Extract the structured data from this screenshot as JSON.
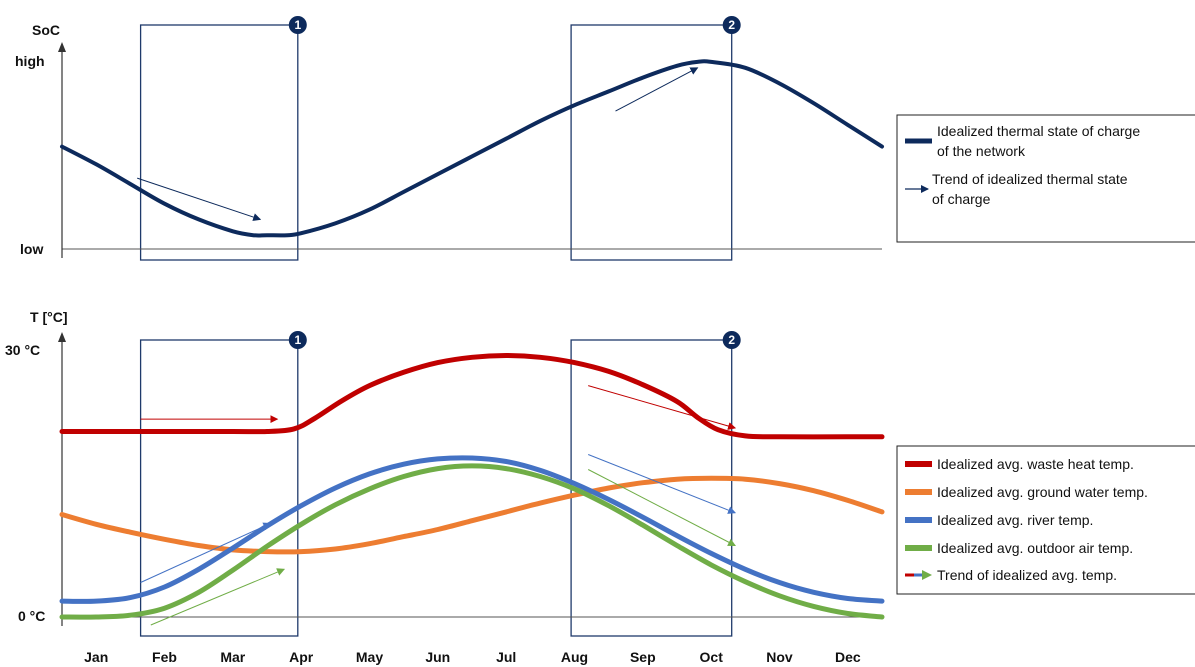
{
  "chart_data": [
    {
      "type": "line",
      "ylabel": "SoC",
      "y_tick_labels": [
        "high",
        "low"
      ],
      "categories": [
        "Jan",
        "Feb",
        "Mar",
        "Apr",
        "May",
        "Jun",
        "Jul",
        "Aug",
        "Sep",
        "Oct",
        "Nov",
        "Dec"
      ],
      "xlim": [
        0.5,
        12.5
      ],
      "ylim": [
        0,
        1
      ],
      "series": [
        {
          "color": "#0d2a5c",
          "x": [
            0.5,
            1,
            1.5,
            2,
            2.5,
            3,
            3.3,
            3.5,
            3.8,
            4,
            4.5,
            5,
            5.5,
            6,
            6.5,
            7,
            7.5,
            8,
            8.5,
            9,
            9.5,
            9.8,
            10,
            10.5,
            11,
            11.5,
            12,
            12.5
          ],
          "y": [
            0.52,
            0.43,
            0.33,
            0.23,
            0.15,
            0.09,
            0.07,
            0.07,
            0.07,
            0.08,
            0.13,
            0.2,
            0.29,
            0.38,
            0.47,
            0.56,
            0.65,
            0.73,
            0.8,
            0.87,
            0.93,
            0.95,
            0.95,
            0.92,
            0.84,
            0.74,
            0.63,
            0.52
          ]
        }
      ],
      "trend_arrows": [
        {
          "from": [
            1.6,
            0.36
          ],
          "to": [
            3.4,
            0.15
          ]
        },
        {
          "from": [
            8.6,
            0.7
          ],
          "to": [
            9.8,
            0.92
          ]
        }
      ],
      "highlight_boxes": [
        {
          "label": "1",
          "x_range": [
            1.65,
            3.95
          ]
        },
        {
          "label": "2",
          "x_range": [
            7.95,
            10.3
          ]
        }
      ],
      "legend": {
        "position": "right",
        "entries": [
          {
            "label": "Idealized thermal state of charge of the network",
            "lines": [
              "Idealized thermal state of charge",
              "of the network"
            ],
            "color": "#0d2a5c",
            "marker": "line"
          },
          {
            "label": "Trend of idealized thermal state of charge",
            "lines": [
              "Trend of idealized thermal state",
              "of charge"
            ],
            "color": "#0d2a5c",
            "marker": "arrow"
          }
        ]
      }
    },
    {
      "type": "line",
      "ylabel": "T [°C]",
      "y_tick_labels": [
        "30 °C",
        "0 °C"
      ],
      "categories": [
        "Jan",
        "Feb",
        "Mar",
        "Apr",
        "May",
        "Jun",
        "Jul",
        "Aug",
        "Sep",
        "Oct",
        "Nov",
        "Dec"
      ],
      "xlim": [
        0.5,
        12.5
      ],
      "ylim": [
        0,
        30
      ],
      "series": [
        {
          "name": "Idealized avg. waste heat temp.",
          "color": "#c00000",
          "x": [
            0.5,
            1,
            2,
            3,
            3.5,
            3.9,
            4.2,
            4.6,
            5,
            5.5,
            6,
            6.5,
            7,
            7.5,
            8,
            8.5,
            9,
            9.5,
            9.8,
            10.1,
            10.5,
            11,
            12,
            12.5
          ],
          "y": [
            21,
            21,
            21,
            21,
            21,
            21.3,
            22.5,
            24.5,
            26.2,
            27.7,
            28.8,
            29.4,
            29.6,
            29.4,
            28.8,
            27.8,
            26.3,
            24.4,
            22.6,
            21.2,
            20.5,
            20.4,
            20.4,
            20.4
          ]
        },
        {
          "name": "Idealized avg. ground water temp.",
          "color": "#ed7d31",
          "x": [
            0.5,
            1,
            1.5,
            2,
            2.5,
            3,
            3.5,
            4,
            4.5,
            5,
            5.5,
            6,
            6.5,
            7,
            7.5,
            8,
            8.5,
            9,
            9.5,
            10,
            10.5,
            11,
            11.5,
            12,
            12.5
          ],
          "y": [
            11.6,
            10.5,
            9.6,
            8.8,
            8.1,
            7.6,
            7.4,
            7.4,
            7.7,
            8.3,
            9.1,
            9.9,
            10.9,
            11.9,
            12.9,
            13.8,
            14.6,
            15.2,
            15.6,
            15.7,
            15.6,
            15.1,
            14.3,
            13.2,
            11.9
          ]
        },
        {
          "name": "Idealized avg. river temp.",
          "color": "#4472c4",
          "x": [
            0.5,
            1,
            1.5,
            2,
            2.5,
            3,
            3.5,
            4,
            4.5,
            5,
            5.5,
            6,
            6.5,
            7,
            7.5,
            8,
            8.5,
            9,
            9.5,
            10,
            10.5,
            11,
            11.5,
            12,
            12.5
          ],
          "y": [
            1.8,
            1.8,
            2.2,
            3.4,
            5.4,
            7.8,
            10.3,
            12.6,
            14.6,
            16.2,
            17.3,
            17.9,
            18.0,
            17.6,
            16.6,
            15.1,
            13.3,
            11.3,
            9.2,
            7.2,
            5.4,
            3.9,
            2.8,
            2.1,
            1.8
          ]
        },
        {
          "name": "Idealized avg. outdoor air temp.",
          "color": "#70ad47",
          "x": [
            0.5,
            1,
            1.5,
            2,
            2.5,
            3,
            3.5,
            4,
            4.5,
            5,
            5.5,
            6,
            6.5,
            7,
            7.5,
            8,
            8.5,
            9,
            9.5,
            10,
            10.5,
            11,
            11.5,
            12,
            12.5
          ],
          "y": [
            0,
            0,
            0.2,
            1.0,
            2.8,
            5.3,
            8.0,
            10.5,
            12.7,
            14.5,
            15.9,
            16.8,
            17.1,
            16.8,
            15.9,
            14.5,
            12.6,
            10.4,
            8.1,
            5.9,
            4.0,
            2.4,
            1.2,
            0.4,
            0
          ]
        }
      ],
      "trend_arrows": [
        {
          "color": "#c00000",
          "from": [
            1.65,
            22.4
          ],
          "to": [
            3.65,
            22.4
          ]
        },
        {
          "color": "#c00000",
          "from": [
            8.2,
            26.2
          ],
          "to": [
            10.35,
            21.4
          ]
        },
        {
          "color": "#4472c4",
          "from": [
            1.65,
            3.9
          ],
          "to": [
            3.55,
            10.6
          ]
        },
        {
          "color": "#4472c4",
          "from": [
            8.2,
            18.4
          ],
          "to": [
            10.35,
            11.8
          ]
        },
        {
          "color": "#70ad47",
          "from": [
            1.8,
            -0.9
          ],
          "to": [
            3.75,
            5.4
          ]
        },
        {
          "color": "#70ad47",
          "from": [
            8.2,
            16.7
          ],
          "to": [
            10.35,
            8.1
          ]
        }
      ],
      "highlight_boxes": [
        {
          "label": "1",
          "x_range": [
            1.65,
            3.95
          ]
        },
        {
          "label": "2",
          "x_range": [
            7.95,
            10.3
          ]
        }
      ],
      "legend": {
        "position": "right",
        "entries": [
          {
            "label": "Idealized avg. waste heat temp.",
            "color": "#c00000",
            "marker": "line"
          },
          {
            "label": "Idealized avg. ground water temp.",
            "color": "#ed7d31",
            "marker": "line"
          },
          {
            "label": "Idealized avg. river temp.",
            "color": "#4472c4",
            "marker": "line"
          },
          {
            "label": "Idealized avg. outdoor air temp.",
            "color": "#70ad47",
            "marker": "line"
          },
          {
            "label": "Trend of idealized avg. temp.",
            "color": "#c00000",
            "color2": "#4472c4",
            "color3": "#70ad47",
            "marker": "arrow"
          }
        ]
      }
    }
  ]
}
